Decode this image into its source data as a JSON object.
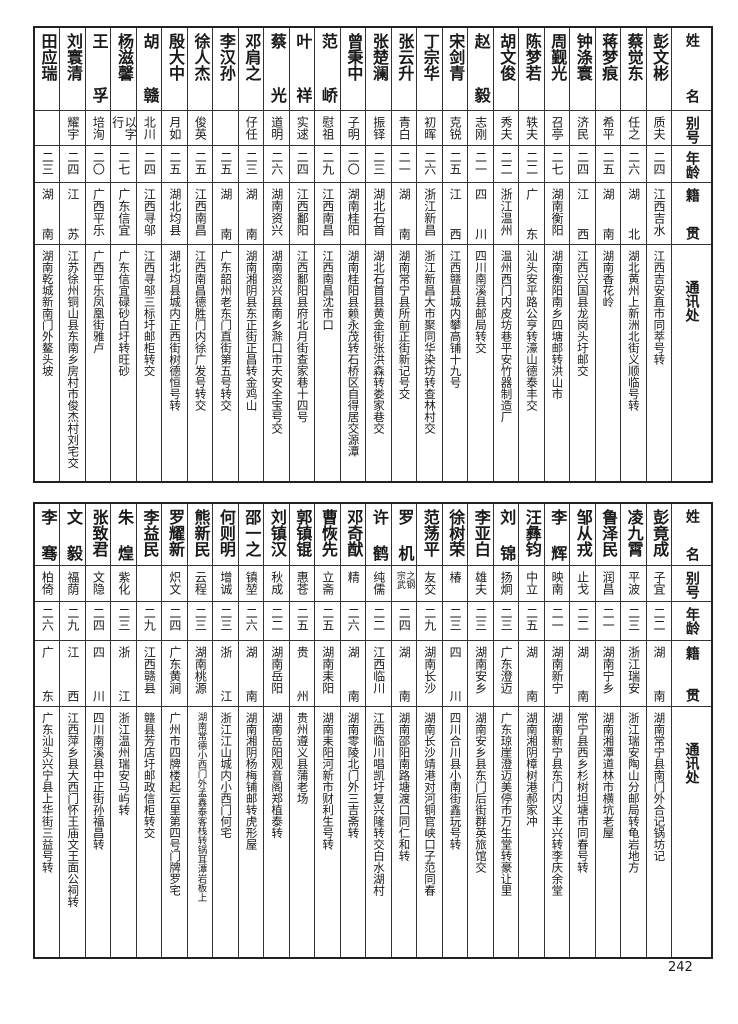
{
  "headers": {
    "name": "姓名",
    "alias": "别号",
    "age": "年龄",
    "origin": "籍贯",
    "address": "通讯处"
  },
  "top_table": [
    {
      "name": "彭文彬",
      "alias": "质夫",
      "age": "二四",
      "origin": "江西吉水",
      "address": "江西吉安直市同萃号转"
    },
    {
      "name": "蔡觉东",
      "alias": "任之",
      "age": "二六",
      "origin": "湖北",
      "address": "湖北黄州上新洲北街义顺临号转"
    },
    {
      "name": "蒋梦痕",
      "alias": "希平",
      "age": "二五",
      "origin": "湖南",
      "address": "湖南香花岭"
    },
    {
      "name": "钟涤寰",
      "alias": "济民",
      "age": "二四",
      "origin": "江西",
      "address": "江西兴国县龙岗头圩邮交"
    },
    {
      "name": "周觐光",
      "alias": "召亭",
      "age": "二七",
      "origin": "湖南衡阳",
      "address": "湖南衡阳南乡四塘邮转洪山市"
    },
    {
      "name": "陈梦若",
      "alias": "轶夫",
      "age": "二二",
      "origin": "广东",
      "address": "汕头安平路公亨转濠山德泰丰交"
    },
    {
      "name": "胡文俊",
      "alias": "秀夫",
      "age": "二二",
      "origin": "浙江温州",
      "address": "温州西门内皮坊巷平安竹器制造厂"
    },
    {
      "name": "赵毅",
      "alias": "志刚",
      "age": "二一",
      "origin": "四川",
      "address": "四川南溪县邮局转交"
    },
    {
      "name": "宋剑青",
      "alias": "克锐",
      "age": "二五",
      "origin": "江西",
      "address": "江西赣县城内攀高铺十九号"
    },
    {
      "name": "丁宗华",
      "alias": "初晖",
      "age": "二六",
      "origin": "浙江新昌",
      "address": "浙江新昌大市聚同华染坊转查林村交"
    },
    {
      "name": "张云升",
      "alias": "青白",
      "age": "二一",
      "origin": "湖南",
      "address": "湖南常宁县所前正街新记号交"
    },
    {
      "name": "张楚澜",
      "alias": "振铎",
      "age": "二三",
      "origin": "湖北石首",
      "address": "湖北石首县黄金街张洪森转娄家巷交"
    },
    {
      "name": "曾秉中",
      "alias": "子明",
      "age": "二〇",
      "origin": "湖南桂阳",
      "address": "湖南桂阳县赖永茂转石桥区自得居交源潭"
    },
    {
      "name": "范峤",
      "alias": "慰祖",
      "age": "二九",
      "origin": "江西南昌",
      "address": "江西南昌沈市口"
    },
    {
      "name": "叶祥",
      "alias": "实逑",
      "age": "二四",
      "origin": "江西鄱阳",
      "address": "江西鄱阳县府北月街查家巷十四号"
    },
    {
      "name": "蔡光",
      "alias": "道明",
      "age": "二六",
      "origin": "湖南资兴",
      "address": "湖南资兴县南乡滁口市天安全宝号交"
    },
    {
      "name": "邓肩之",
      "alias": "仔任",
      "age": "二三",
      "origin": "湖南",
      "address": "湖南湘阴县东正街正昌转金鸡山"
    },
    {
      "name": "李汉孙",
      "alias": "",
      "age": "二五",
      "origin": "湖南",
      "address": "广东韶州老东门直街第五号转交"
    },
    {
      "name": "徐人杰",
      "alias": "俊英",
      "age": "二五",
      "origin": "江西南昌",
      "address": "江西南昌德胜门内徐广发号转交"
    },
    {
      "name": "殷大中",
      "alias": "月如",
      "age": "二五",
      "origin": "湖北均县",
      "address": "湖北均县城内正西街树德恒号转"
    },
    {
      "name": "胡赣",
      "alias": "北川",
      "age": "二四",
      "origin": "江西寻邬",
      "address": "江西寻邬三标圩邮柜转交"
    },
    {
      "name": "杨滋馨",
      "alias": "以字行",
      "age": "二七",
      "origin": "广东信宜",
      "address": "广东信宜碌砂白圩转旺砂"
    },
    {
      "name": "王孚",
      "alias": "培洵",
      "age": "二〇",
      "origin": "广西平乐",
      "address": "广西平乐凤凰街雅卢"
    },
    {
      "name": "刘寰清",
      "alias": "耀宇",
      "age": "二四",
      "origin": "江苏",
      "address": "江苏徐州铜山县东南乡房村市俊杰村刘宅交"
    },
    {
      "name": "田应瑞",
      "alias": "",
      "age": "二三",
      "origin": "湖南",
      "address": "湖南乾城新南门外鳌头坡"
    }
  ],
  "bottom_table": [
    {
      "name": "彭竟成",
      "alias": "子宜",
      "age": "二二",
      "origin": "湖南",
      "address": "湖南常宁县南门外合记锅坊记"
    },
    {
      "name": "凌九霄",
      "alias": "平波",
      "age": "二三",
      "origin": "浙江瑞安",
      "address": "浙江瑞安陶山分邮局转龟岩地方"
    },
    {
      "name": "鲁泽民",
      "alias": "润昌",
      "age": "二一",
      "origin": "湖南宁乡",
      "address": "湖南湘潭道林市横坑老屋"
    },
    {
      "name": "邹从戎",
      "alias": "止戈",
      "age": "二二",
      "origin": "湖南",
      "address": "常宁县西乡杉树坦塘市同春号转"
    },
    {
      "name": "李辉",
      "alias": "映南",
      "age": "二一",
      "origin": "湖南新宁",
      "address": "湖南新宁县东门内义丰兴转李庆余堂"
    },
    {
      "name": "汪彝钧",
      "alias": "中立",
      "age": "二五",
      "origin": "湖南",
      "address": "湖南湘阴樟树港郝家冲"
    },
    {
      "name": "刘锦",
      "alias": "扬炯",
      "age": "二三",
      "origin": "广东澄迈",
      "address": "广东琼崖澄迈美停市万生堂转豪让里"
    },
    {
      "name": "李亚白",
      "alias": "雄夫",
      "age": "二三",
      "origin": "湖南安乡",
      "address": "湖南安乡县东门后街群英旅馆交"
    },
    {
      "name": "徐树荣",
      "alias": "椿",
      "age": "二三",
      "origin": "四川",
      "address": "四川合川县小南街鑫玩号转"
    },
    {
      "name": "范荡平",
      "alias": "友交",
      "age": "二九",
      "origin": "湖南长沙",
      "address": "湖南长沙靖港对河铜官峡口子范同春"
    },
    {
      "name": "罗机",
      "alias": "之钢宗武",
      "age": "二四",
      "origin": "湖南",
      "address": "湖南邵阳南路塘渡口同仁和转"
    },
    {
      "name": "许鹤",
      "alias": "纯儒",
      "age": "二二",
      "origin": "江西临川",
      "address": "江西临川唱凯圩复兴隆转交白水湖村"
    },
    {
      "name": "邓奇猷",
      "alias": "精",
      "age": "二六",
      "origin": "湖南",
      "address": "湖南零陵北门外三吉斋转"
    },
    {
      "name": "曹恢先",
      "alias": "立斋",
      "age": "二五",
      "origin": "湖南耒阳",
      "address": "湖南耒阳河新市财利生号转"
    },
    {
      "name": "郭镇锟",
      "alias": "惠苍",
      "age": "二五",
      "origin": "贵州",
      "address": "贵州遵义县蒲老场"
    },
    {
      "name": "刘镇汉",
      "alias": "秋成",
      "age": "二二",
      "origin": "湖南岳阳",
      "address": "湖南岳阳观音阁郑植泰转"
    },
    {
      "name": "邵一之",
      "alias": "镇堃",
      "age": "二六",
      "origin": "湖南",
      "address": "湖南湘阴杨梅铺邮转虎形屋"
    },
    {
      "name": "何则明",
      "alias": "增诚",
      "age": "二三",
      "origin": "浙江",
      "address": "浙江江山城内小西门何宅"
    },
    {
      "name": "熊新民",
      "alias": "云程",
      "age": "二三",
      "origin": "湖南桃源",
      "address": "湖南常德小西门外孟鑫泰客栈转锅耳潭岩板上"
    },
    {
      "name": "罗耀新",
      "alias": "炽文",
      "age": "二四",
      "origin": "广东黄涧",
      "address": "广州市四牌楼起云里第四号门牌罗宅"
    },
    {
      "name": "李益民",
      "alias": "",
      "age": "二九",
      "origin": "江西赣县",
      "address": "赣县芳店圩邮政信柜转交"
    },
    {
      "name": "朱煌",
      "alias": "紫化",
      "age": "二三",
      "origin": "浙江",
      "address": "浙江温州瑞安马屿转"
    },
    {
      "name": "张致君",
      "alias": "文隐",
      "age": "二四",
      "origin": "四川",
      "address": "四川南溪县中正街孙福昌转"
    },
    {
      "name": "文毅",
      "alias": "福荫",
      "age": "二九",
      "origin": "江西",
      "address": "江西萍乡县大西门怀王庙文王面公祠转"
    },
    {
      "name": "李骞",
      "alias": "柏倚",
      "age": "二六",
      "origin": "广东",
      "address": "广东汕头兴宁县上华街三益号转"
    }
  ],
  "page_number": "242"
}
